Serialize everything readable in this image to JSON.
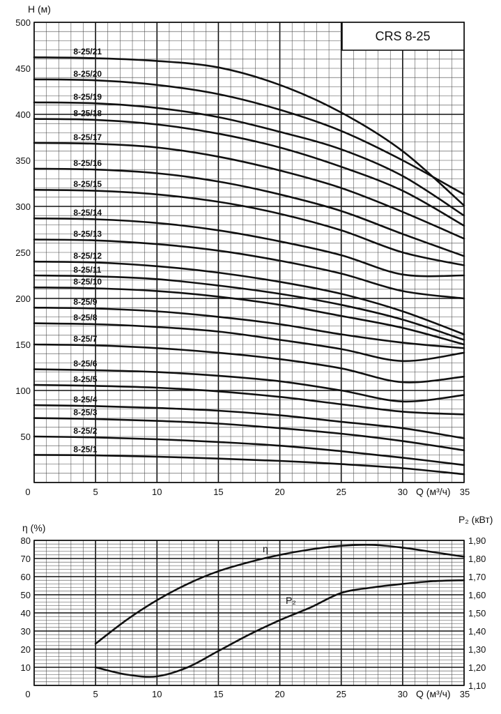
{
  "chart_data": [
    {
      "type": "line",
      "title": "CRS 8-25",
      "xlabel": "Q (м³/ч)",
      "ylabel": "H (м)",
      "xlim": [
        0,
        35
      ],
      "ylim": [
        0,
        500
      ],
      "x_ticks": [
        "0",
        "5",
        "10",
        "15",
        "20",
        "25",
        "30",
        "35"
      ],
      "y_ticks": [
        "50",
        "100",
        "150",
        "200",
        "250",
        "300",
        "350",
        "400",
        "450",
        "500"
      ],
      "x": [
        0,
        5,
        10,
        15,
        20,
        25,
        30,
        35
      ],
      "grid": true,
      "series": [
        {
          "name": "8-25/1",
          "values": [
            30,
            29.5,
            28,
            26,
            23.5,
            20,
            15.5,
            9
          ]
        },
        {
          "name": "8-25/2",
          "values": [
            50,
            49,
            47,
            44,
            40,
            34,
            27,
            19
          ]
        },
        {
          "name": "8-25/3",
          "values": [
            70,
            69,
            67,
            64,
            59,
            53,
            45,
            35
          ]
        },
        {
          "name": "8-25/4",
          "values": [
            84,
            83,
            81,
            78,
            73,
            66,
            59,
            48
          ]
        },
        {
          "name": "8-25/5",
          "values": [
            106,
            105,
            103,
            99,
            93,
            85,
            77,
            74
          ]
        },
        {
          "name": "8-25/6",
          "values": [
            123,
            122,
            120,
            116,
            110,
            100,
            88,
            95
          ]
        },
        {
          "name": "8-25/7",
          "values": [
            150,
            149,
            146,
            141,
            134,
            124,
            109,
            115
          ]
        },
        {
          "name": "8-25/8",
          "values": [
            173,
            172,
            169,
            164,
            155,
            145,
            132,
            141
          ]
        },
        {
          "name": "8-25/9",
          "values": [
            190,
            189,
            186,
            180,
            172,
            161,
            152,
            146
          ]
        },
        {
          "name": "8-25/10",
          "values": [
            212,
            211,
            208,
            202,
            193,
            181,
            168,
            150
          ]
        },
        {
          "name": "8-25/11",
          "values": [
            225,
            224,
            221,
            214,
            205,
            193,
            177,
            155
          ]
        },
        {
          "name": "8-25/12",
          "values": [
            240,
            239,
            235,
            228,
            218,
            205,
            186,
            161
          ]
        },
        {
          "name": "8-25/13",
          "values": [
            264,
            263,
            259,
            252,
            241,
            227,
            208,
            200
          ]
        },
        {
          "name": "8-25/14",
          "values": [
            287,
            286,
            282,
            274,
            262,
            247,
            226,
            225
          ]
        },
        {
          "name": "8-25/15",
          "values": [
            318,
            317,
            313,
            305,
            292,
            274,
            250,
            236
          ]
        },
        {
          "name": "8-25/16",
          "values": [
            341,
            340,
            336,
            327,
            313,
            295,
            270,
            246
          ]
        },
        {
          "name": "8-25/17",
          "values": [
            369,
            368,
            364,
            354,
            339,
            320,
            294,
            265
          ]
        },
        {
          "name": "8-25/18",
          "values": [
            395,
            394,
            389,
            379,
            364,
            343,
            317,
            279
          ]
        },
        {
          "name": "8-25/19",
          "values": [
            413,
            412,
            407,
            397,
            381,
            362,
            333,
            290
          ]
        },
        {
          "name": "8-25/20",
          "values": [
            438,
            437,
            432,
            422,
            405,
            382,
            350,
            313
          ]
        },
        {
          "name": "8-25/21",
          "values": [
            462,
            461,
            458,
            451,
            432,
            402,
            360,
            301
          ]
        }
      ]
    },
    {
      "type": "line",
      "xlabel": "Q (м³/ч)",
      "ylabel_left": "η (%)",
      "ylabel_right": "P₂ (кВт)",
      "xlim": [
        0,
        35
      ],
      "ylim_left": [
        0,
        80
      ],
      "ylim_right": [
        1.1,
        1.9
      ],
      "x_ticks": [
        "0",
        "5",
        "10",
        "15",
        "20",
        "25",
        "30",
        "35"
      ],
      "y_ticks_left": [
        "10",
        "20",
        "30",
        "40",
        "50",
        "60",
        "70",
        "80"
      ],
      "y_ticks_right": [
        "1,10",
        "1,20",
        "1,30",
        "1,40",
        "1,50",
        "1,60",
        "1,70",
        "1,80",
        "1,90"
      ],
      "grid": true,
      "series": [
        {
          "name": "η",
          "axis": "left",
          "x": [
            5,
            7.5,
            10,
            12.5,
            15,
            17.5,
            20,
            22.5,
            25,
            27.5,
            30,
            32.5,
            35
          ],
          "values": [
            23,
            36,
            47,
            56,
            63,
            68,
            72,
            75,
            77,
            77.5,
            76,
            73.5,
            71
          ]
        },
        {
          "name": "P₂",
          "axis": "right",
          "x": [
            5,
            7.5,
            10,
            12.5,
            15,
            17.5,
            20,
            22.5,
            25,
            27.5,
            30,
            32.5,
            35
          ],
          "values": [
            1.2,
            1.16,
            1.15,
            1.2,
            1.29,
            1.38,
            1.46,
            1.53,
            1.61,
            1.64,
            1.66,
            1.675,
            1.68
          ]
        }
      ]
    }
  ]
}
